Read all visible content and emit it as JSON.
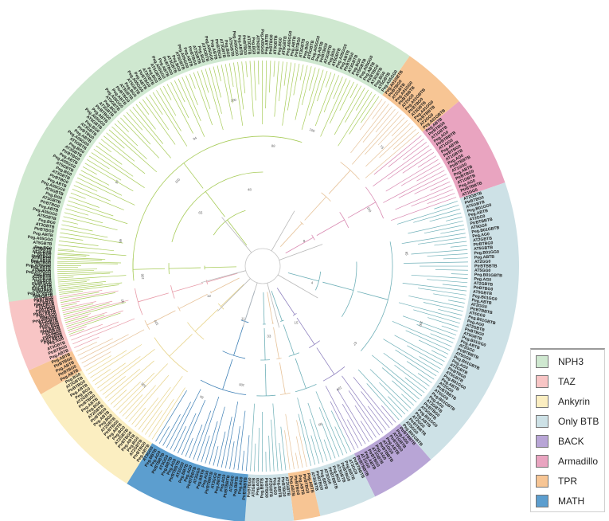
{
  "tree": {
    "groups": [
      {
        "name": "NPH3",
        "start": 160,
        "end": 305,
        "fill": "#cfe8d0",
        "line": "#a8cc5a",
        "leaf_prefixes": [
          "Peg.A",
          "PtrBTB",
          "AT3G",
          "Peg.B",
          "AT5G",
          "Peg.A05G"
        ]
      },
      {
        "name": "TPR",
        "start": 308,
        "end": 323,
        "fill": "#f7c594",
        "line": "#e7c39a",
        "leaf_prefixes": [
          "Peg.A01G",
          "PtrBTB",
          "AT2G"
        ]
      },
      {
        "name": "Armadillo",
        "start": 323,
        "end": 344,
        "fill": "#e9a4c0",
        "line": "#d98ab2",
        "leaf_prefixes": [
          "Peg.A",
          "PtrBTB",
          "AT1G"
        ]
      },
      {
        "name": "Only BTB",
        "start": 344,
        "end": 412,
        "fill": "#cde1e6",
        "line": "#6fb0b8",
        "leaf_prefixes": [
          "AT2G",
          "PtrBTB",
          "AT5G",
          "Peg.B01G",
          "Peg.A"
        ]
      },
      {
        "name": "BACK",
        "start": 412,
        "end": 427,
        "fill": "#b8a5d6",
        "line": "#8f82bf",
        "leaf_prefixes": [
          "PtrBTB",
          "Peg.A",
          "AT1G"
        ]
      },
      {
        "name": "Only BTB",
        "start": 427,
        "end": 440,
        "fill": "#cde1e6",
        "line": "#6fb0b8",
        "leaf_prefixes": [
          "PtrBTB",
          "AT3G",
          "Peg.B"
        ]
      },
      {
        "name": "TPR",
        "start": 440,
        "end": 446,
        "fill": "#f7c594",
        "line": "#e7c39a",
        "leaf_prefixes": [
          "Peg.A",
          "PtrBTB"
        ]
      },
      {
        "name": "Only BTB",
        "start": 446,
        "end": 486,
        "fill": "#cde1e6",
        "line": "#6fb0b8",
        "leaf_prefixes": [
          "AT2G",
          "PtrBTB",
          "Peg.B",
          "Peg.A"
        ]
      },
      {
        "name": "MATH",
        "start": 486,
        "end": 540,
        "fill": "#5c9ecf",
        "line": "#3d7fb5",
        "leaf_prefixes": [
          "PtrBTB",
          "Peg.A",
          "Peg.B",
          "AT3G"
        ]
      },
      {
        "name": "Ankyrin",
        "start": 540,
        "end": 582,
        "fill": "#fbeec1",
        "line": "#e8d48a",
        "leaf_prefixes": [
          "Peg.A",
          "PtrBTB",
          "AT2G",
          "Peg.B"
        ]
      },
      {
        "name": "TPR",
        "start": 582,
        "end": 600,
        "fill": "#f7c594",
        "line": "#e7c39a",
        "leaf_prefixes": [
          "Peg.A",
          "PtrBTB"
        ]
      },
      {
        "name": "TAZ",
        "start": 600,
        "end": 619,
        "fill": "#f8c5c5",
        "line": "#e89aa8",
        "leaf_prefixes": [
          "Peg.A",
          "PtrBTB",
          "AT3G"
        ]
      },
      {
        "name": "NPH3",
        "start": 619,
        "end": 520,
        "fill": "#cfe8d0",
        "line": "#a8cc5a",
        "leaf_prefixes": []
      }
    ],
    "support_values": [
      "100",
      "99",
      "97",
      "100",
      "94",
      "100",
      "88",
      "100",
      "73",
      "100",
      "95",
      "100",
      "67",
      "100",
      "99",
      "100",
      "84",
      "100",
      "100",
      "92"
    ],
    "internal_labels": [
      "9",
      "4",
      "11",
      "12",
      "15",
      "33",
      "48",
      "65"
    ]
  },
  "legend": {
    "items": [
      {
        "label": "NPH3",
        "color": "#cfe8d0"
      },
      {
        "label": "TAZ",
        "color": "#f8c5c5"
      },
      {
        "label": "Ankyrin",
        "color": "#fbeec1"
      },
      {
        "label": "Only BTB",
        "color": "#cde1e6"
      },
      {
        "label": "BACK",
        "color": "#b8a5d6"
      },
      {
        "label": "Armadillo",
        "color": "#e9a4c0"
      },
      {
        "label": "TPR",
        "color": "#f7c594"
      },
      {
        "label": "MATH",
        "color": "#5c9ecf"
      }
    ]
  }
}
